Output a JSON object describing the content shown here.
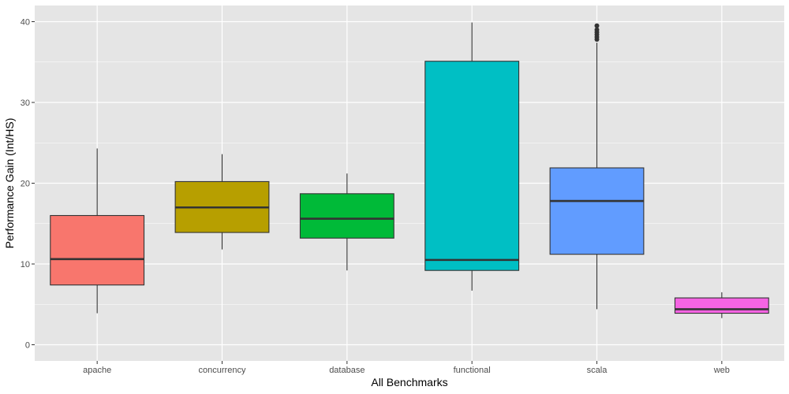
{
  "chart_data": {
    "type": "box",
    "title": "",
    "xlabel": "All Benchmarks",
    "ylabel": "Performance Gain (Int/HS)",
    "ylim": [
      -2,
      42
    ],
    "yticks": [
      0,
      10,
      20,
      30,
      40
    ],
    "grid": true,
    "legend": "none",
    "categories": [
      "apache",
      "concurrency",
      "database",
      "functional",
      "scala",
      "web"
    ],
    "boxes": [
      {
        "category": "apache",
        "whisker_low": 3.9,
        "q1": 7.4,
        "median": 10.6,
        "q3": 16.0,
        "whisker_high": 24.3,
        "outliers": [],
        "color": "#F8766D"
      },
      {
        "category": "concurrency",
        "whisker_low": 11.8,
        "q1": 13.9,
        "median": 17.0,
        "q3": 20.2,
        "whisker_high": 23.6,
        "outliers": [],
        "color": "#B79F00"
      },
      {
        "category": "database",
        "whisker_low": 9.2,
        "q1": 13.2,
        "median": 15.6,
        "q3": 18.7,
        "whisker_high": 21.2,
        "outliers": [],
        "color": "#00BA38"
      },
      {
        "category": "functional",
        "whisker_low": 6.7,
        "q1": 9.2,
        "median": 10.5,
        "q3": 35.1,
        "whisker_high": 39.9,
        "outliers": [],
        "color": "#00BFC4"
      },
      {
        "category": "scala",
        "whisker_low": 4.4,
        "q1": 11.2,
        "median": 17.8,
        "q3": 21.9,
        "whisker_high": 37.4,
        "outliers": [
          37.8,
          38.1,
          38.4,
          38.7,
          39.0,
          39.5
        ],
        "color": "#619CFF"
      },
      {
        "category": "web",
        "whisker_low": 3.3,
        "q1": 3.9,
        "median": 4.4,
        "q3": 5.8,
        "whisker_high": 6.5,
        "outliers": [],
        "color": "#F564E3"
      }
    ]
  },
  "colors": {
    "panel_background": "#E5E5E5",
    "grid": "#FFFFFF",
    "box_outline": "#333333"
  }
}
